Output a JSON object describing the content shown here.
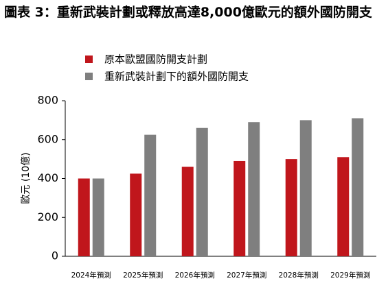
{
  "chart_data": {
    "type": "bar",
    "title": "圖表 3：重新武裝計劃或釋放高達8,000億歐元的額外國防開支",
    "y_label": "歐元 (10億)",
    "categories": [
      "2024年預測",
      "2025年預測",
      "2026年預測",
      "2027年預測",
      "2028年預測",
      "2029年預測"
    ],
    "series": [
      {
        "name": "原本歐盟國防開支計劃",
        "color": "#c0161c",
        "values": [
          400,
          425,
          460,
          490,
          500,
          510
        ]
      },
      {
        "name": "重新武裝計劃下的額外國防開支",
        "color": "#7f7f7f",
        "values": [
          400,
          625,
          660,
          690,
          700,
          710
        ]
      }
    ],
    "ylim": [
      0,
      800
    ],
    "yticks": [
      0,
      200,
      400,
      600,
      800
    ],
    "grid": false
  }
}
